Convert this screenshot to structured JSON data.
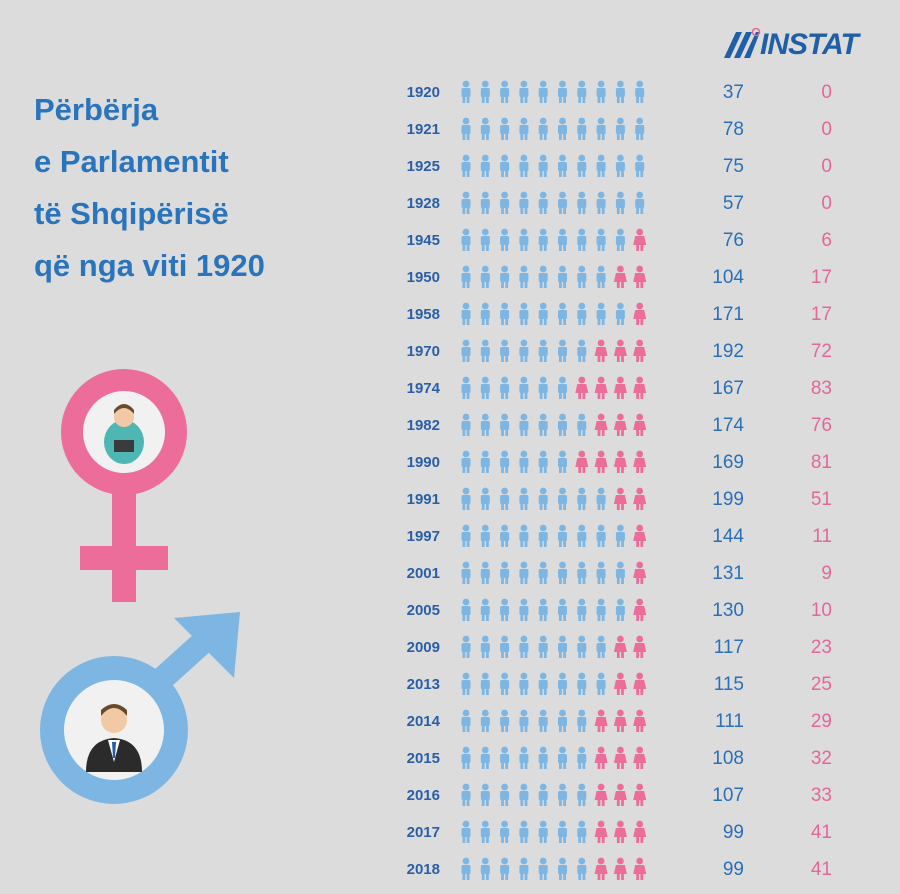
{
  "logo": {
    "text": "INSTAT"
  },
  "title": {
    "lines": [
      "Përbërja",
      "e Parlamentit",
      "të Shqipërisë",
      "që nga viti 1920"
    ]
  },
  "colors": {
    "male": "#7db6e3",
    "female": "#ec6d9a",
    "male_text": "#2a6fb8",
    "female_text": "#e5669a",
    "year_text": "#2a5ea6",
    "title": "#2a74bd"
  },
  "icons": {
    "female": "female-symbol-icon",
    "male": "male-symbol-icon"
  },
  "chart_data": {
    "type": "table",
    "title": "Përbërja e Parlamentit të Shqipërisë që nga viti 1920",
    "icons_per_row": 10,
    "rows": [
      {
        "year": "1920",
        "male": 37,
        "female": 0,
        "female_icons": 0
      },
      {
        "year": "1921",
        "male": 78,
        "female": 0,
        "female_icons": 0
      },
      {
        "year": "1925",
        "male": 75,
        "female": 0,
        "female_icons": 0
      },
      {
        "year": "1928",
        "male": 57,
        "female": 0,
        "female_icons": 0
      },
      {
        "year": "1945",
        "male": 76,
        "female": 6,
        "female_icons": 1
      },
      {
        "year": "1950",
        "male": 104,
        "female": 17,
        "female_icons": 2
      },
      {
        "year": "1958",
        "male": 171,
        "female": 17,
        "female_icons": 1
      },
      {
        "year": "1970",
        "male": 192,
        "female": 72,
        "female_icons": 3
      },
      {
        "year": "1974",
        "male": 167,
        "female": 83,
        "female_icons": 4
      },
      {
        "year": "1982",
        "male": 174,
        "female": 76,
        "female_icons": 3
      },
      {
        "year": "1990",
        "male": 169,
        "female": 81,
        "female_icons": 4
      },
      {
        "year": "1991",
        "male": 199,
        "female": 51,
        "female_icons": 2
      },
      {
        "year": "1997",
        "male": 144,
        "female": 11,
        "female_icons": 1
      },
      {
        "year": "2001",
        "male": 131,
        "female": 9,
        "female_icons": 1
      },
      {
        "year": "2005",
        "male": 130,
        "female": 10,
        "female_icons": 1
      },
      {
        "year": "2009",
        "male": 117,
        "female": 23,
        "female_icons": 2
      },
      {
        "year": "2013",
        "male": 115,
        "female": 25,
        "female_icons": 2
      },
      {
        "year": "2014",
        "male": 111,
        "female": 29,
        "female_icons": 3
      },
      {
        "year": "2015",
        "male": 108,
        "female": 32,
        "female_icons": 3
      },
      {
        "year": "2016",
        "male": 107,
        "female": 33,
        "female_icons": 3
      },
      {
        "year": "2017",
        "male": 99,
        "female": 41,
        "female_icons": 3
      },
      {
        "year": "2018",
        "male": 99,
        "female": 41,
        "female_icons": 3
      }
    ]
  }
}
